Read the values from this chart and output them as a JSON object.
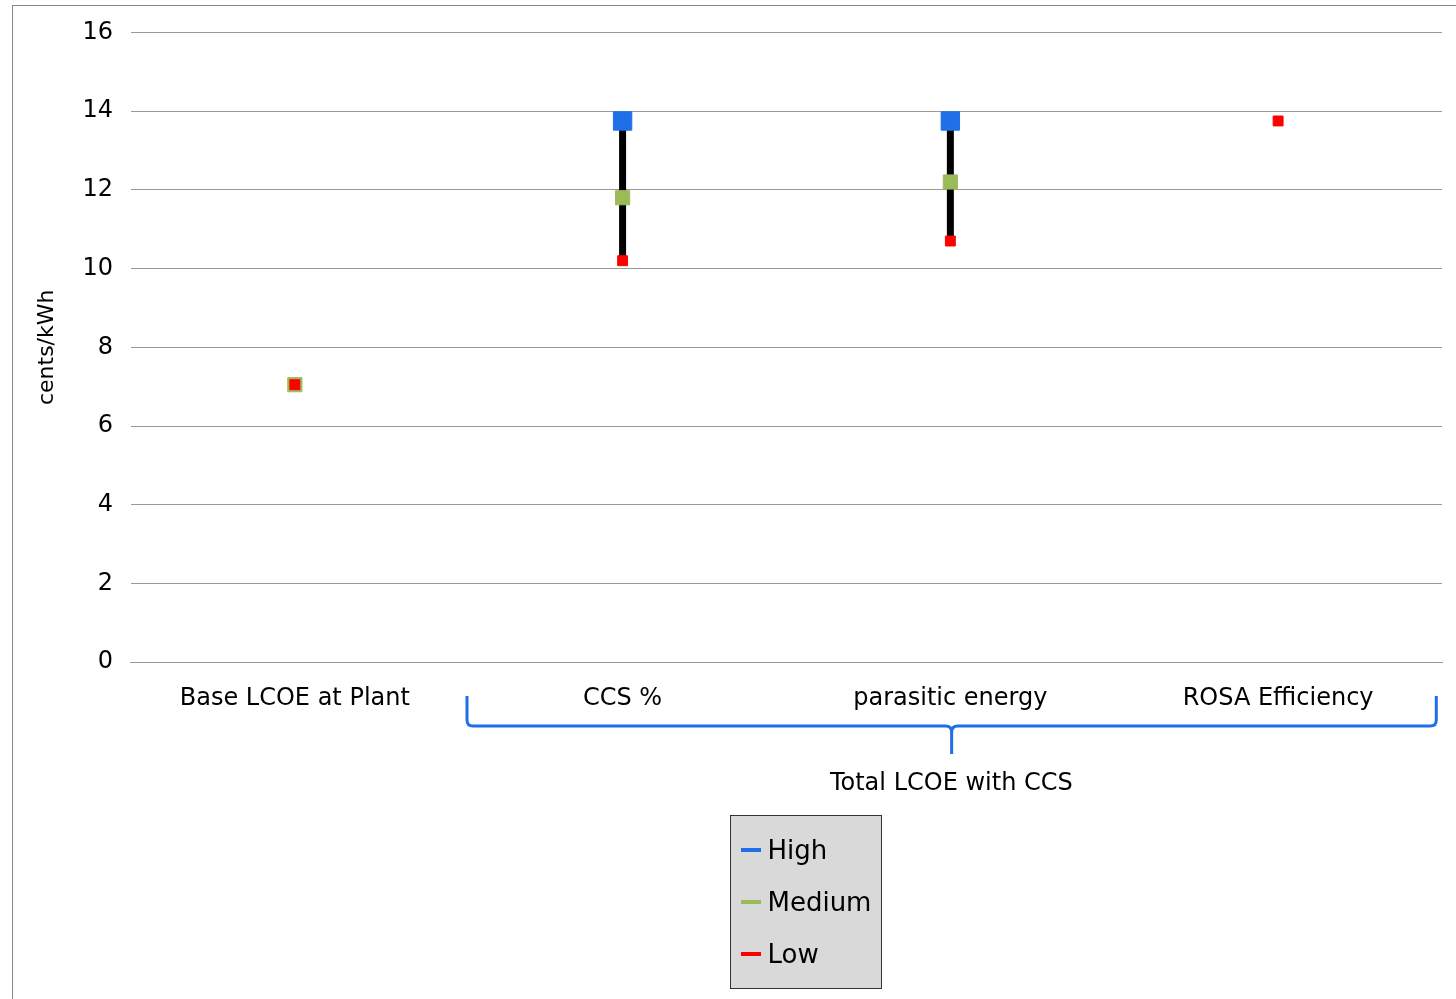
{
  "chart_data": {
    "type": "scatter",
    "ylabel": "cents/kWh",
    "categories": [
      "Base LCOE at Plant",
      "CCS %",
      "parasitic energy",
      "ROSA Efficiency"
    ],
    "series": [
      {
        "name": "High",
        "color": "#1f6fe8",
        "values": [
          null,
          13.75,
          13.75,
          null
        ]
      },
      {
        "name": "Medium",
        "color": "#9bbb59",
        "values": [
          7.05,
          11.8,
          12.2,
          null
        ]
      },
      {
        "name": "Low",
        "color": "#ff0000",
        "values": [
          7.05,
          10.2,
          10.7,
          13.75
        ]
      }
    ],
    "ylim": [
      0,
      16
    ],
    "yticks": [
      0,
      2,
      4,
      6,
      8,
      10,
      12,
      14,
      16
    ],
    "grid": "y",
    "legend": "bottom",
    "marker": "square",
    "annotations": [
      "Total LCOE with CCS"
    ]
  }
}
